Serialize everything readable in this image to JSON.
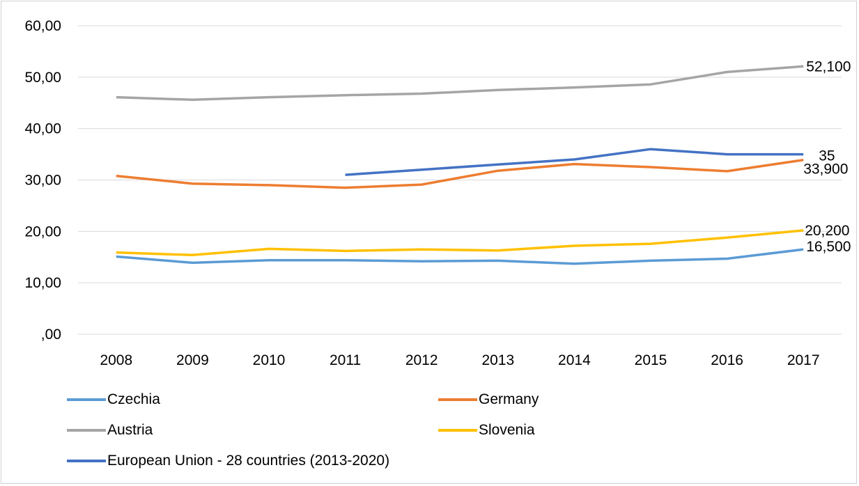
{
  "chart_data": {
    "type": "line",
    "categories": [
      "2008",
      "2009",
      "2010",
      "2011",
      "2012",
      "2013",
      "2014",
      "2015",
      "2016",
      "2017"
    ],
    "ylim": [
      0,
      60
    ],
    "yticks": [
      ",00",
      "10,00",
      "20,00",
      "30,00",
      "40,00",
      "50,00",
      "60,00"
    ],
    "ytick_values": [
      0,
      10,
      20,
      30,
      40,
      50,
      60
    ],
    "grid": true,
    "legend_position": "bottom",
    "series": [
      {
        "name": "Czechia",
        "color": "#5b9bd5",
        "values": [
          15.1,
          13.9,
          14.4,
          14.4,
          14.2,
          14.3,
          13.7,
          14.3,
          14.7,
          16.5
        ],
        "end_label": "16,500"
      },
      {
        "name": "Germany",
        "color": "#ed7d31",
        "values": [
          30.8,
          29.3,
          29.0,
          28.5,
          29.1,
          31.8,
          33.1,
          32.5,
          31.7,
          33.9
        ],
        "end_label": "33,900"
      },
      {
        "name": "Austria",
        "color": "#a5a5a5",
        "values": [
          46.1,
          45.6,
          46.1,
          46.5,
          46.8,
          47.5,
          48.0,
          48.6,
          51.0,
          52.1
        ],
        "end_label": "52,100"
      },
      {
        "name": "Slovenia",
        "color": "#ffc000",
        "values": [
          15.9,
          15.4,
          16.6,
          16.2,
          16.5,
          16.3,
          17.2,
          17.6,
          18.8,
          20.2
        ],
        "end_label": "20,200"
      },
      {
        "name": "European Union - 28 countries (2013-2020)",
        "color": "#4472c4",
        "values": [
          null,
          null,
          null,
          31.0,
          32.0,
          33.0,
          34.0,
          36.0,
          35.0,
          35.0
        ],
        "end_label": "35"
      }
    ]
  }
}
